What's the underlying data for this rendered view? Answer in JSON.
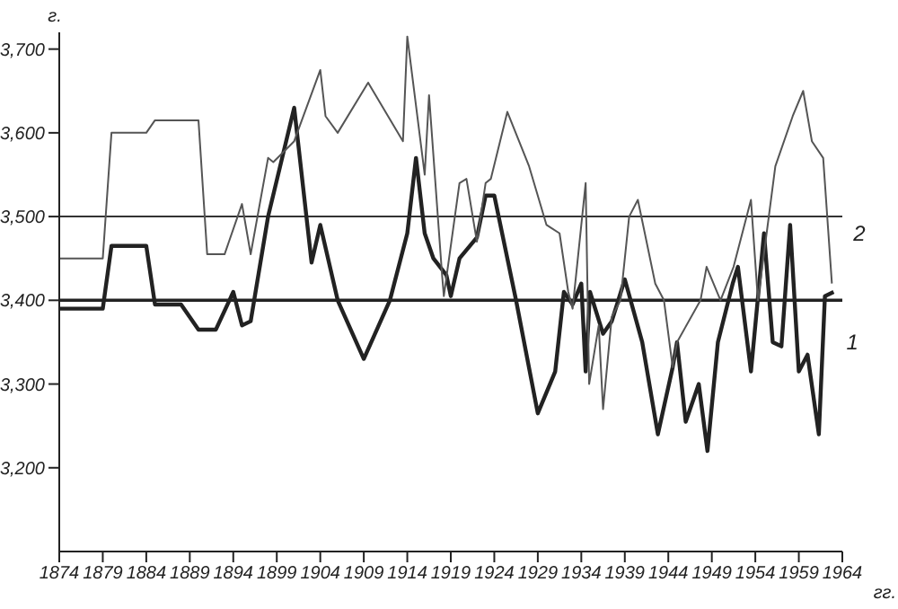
{
  "chart_data": {
    "type": "line",
    "ylabel": "г.",
    "xlabel": "гг.",
    "xlim": [
      1874,
      1964
    ],
    "xticks": [
      1874,
      1879,
      1884,
      1889,
      1894,
      1899,
      1904,
      1909,
      1914,
      1919,
      1924,
      1929,
      1934,
      1939,
      1944,
      1949,
      1954,
      1959,
      1964
    ],
    "ylim": [
      3100,
      3720
    ],
    "yticks": [
      {
        "value": 3200,
        "label": "3,200"
      },
      {
        "value": 3300,
        "label": "3,300"
      },
      {
        "value": 3400,
        "label": "3,400"
      },
      {
        "value": 3500,
        "label": "3,500"
      },
      {
        "value": 3600,
        "label": "3,600"
      },
      {
        "value": 3700,
        "label": "3,700"
      }
    ],
    "marker": "none",
    "line_style": "solid",
    "ref_lines": [
      {
        "axis": "y",
        "value": 3500,
        "color": "#333333"
      },
      {
        "axis": "y",
        "value": 3400,
        "color": "#222222"
      }
    ],
    "annotations": [
      {
        "text": "1",
        "x": 1962,
        "y": 3350
      },
      {
        "text": "2",
        "x": 1962.8,
        "y": 3480
      }
    ],
    "series": [
      {
        "color": "#222222",
        "x": [
          1874,
          1879,
          1880,
          1884,
          1885,
          1888,
          1890,
          1892,
          1894,
          1895,
          1896,
          1898,
          1901,
          1903,
          1904,
          1906,
          1909,
          1912,
          1914,
          1915,
          1916,
          1917,
          1918.5,
          1919,
          1920,
          1922,
          1923,
          1924,
          1926.5,
          1929,
          1931,
          1932,
          1933,
          1934,
          1934.5,
          1935,
          1936.5,
          1937.5,
          1939,
          1941,
          1942.8,
          1944.5,
          1945,
          1946,
          1947.5,
          1948.5,
          1949.7,
          1951.4,
          1952,
          1953.5,
          1955,
          1956,
          1957,
          1958,
          1959,
          1960,
          1961.3,
          1962,
          1963
        ],
        "values": [
          3390,
          3390,
          3465,
          3465,
          3395,
          3395,
          3365,
          3365,
          3410,
          3370,
          3375,
          3500,
          3630,
          3445,
          3490,
          3400,
          3330,
          3400,
          3480,
          3570,
          3480,
          3450,
          3430,
          3405,
          3450,
          3475,
          3525,
          3525,
          3400,
          3265,
          3315,
          3410,
          3395,
          3420,
          3315,
          3410,
          3360,
          3375,
          3425,
          3350,
          3240,
          3320,
          3350,
          3255,
          3300,
          3220,
          3350,
          3420,
          3440,
          3315,
          3480,
          3350,
          3345,
          3490,
          3315,
          3335,
          3240,
          3405,
          3410
        ]
      },
      {
        "color": "#555555",
        "x": [
          1874,
          1879,
          1880,
          1884,
          1885,
          1890,
          1891,
          1893,
          1895,
          1896,
          1898,
          1898.6,
          1901,
          1904,
          1904.6,
          1906,
          1909.5,
          1913.5,
          1914,
          1916,
          1916.5,
          1918,
          1918.2,
          1920,
          1920.8,
          1922,
          1923,
          1923.6,
          1925.5,
          1928,
          1930,
          1931.5,
          1932.5,
          1933,
          1934.5,
          1934.9,
          1936,
          1936.5,
          1937.5,
          1938.5,
          1939.5,
          1940.5,
          1942.5,
          1943.5,
          1944.5,
          1945,
          1947.7,
          1948.4,
          1950,
          1951.5,
          1953.5,
          1954.3,
          1956.3,
          1958.3,
          1959.5,
          1960.5,
          1961.8,
          1962.8
        ],
        "values": [
          3450,
          3450,
          3600,
          3600,
          3615,
          3615,
          3455,
          3455,
          3515,
          3455,
          3570,
          3565,
          3590,
          3675,
          3620,
          3600,
          3660,
          3590,
          3715,
          3550,
          3645,
          3430,
          3405,
          3540,
          3545,
          3470,
          3540,
          3545,
          3625,
          3560,
          3490,
          3480,
          3410,
          3390,
          3540,
          3300,
          3370,
          3270,
          3380,
          3400,
          3500,
          3520,
          3420,
          3400,
          3320,
          3350,
          3400,
          3440,
          3400,
          3440,
          3520,
          3400,
          3560,
          3620,
          3650,
          3590,
          3570,
          3420
        ]
      }
    ]
  }
}
